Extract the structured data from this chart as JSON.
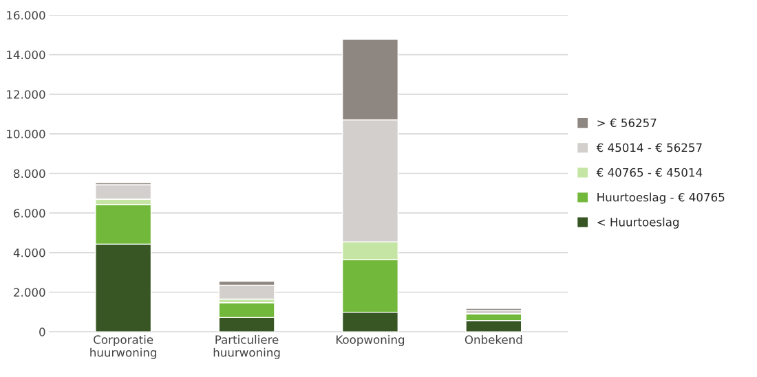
{
  "chart_data": {
    "type": "bar",
    "stacked": true,
    "categories": [
      "Corporatie\nhuurwoning",
      "Particuliere\nhuurwoning",
      "Koopwoning",
      "Onbekend"
    ],
    "series": [
      {
        "name": "< Huurtoeslag",
        "color": "#375623",
        "values": [
          4430,
          720,
          990,
          570
        ]
      },
      {
        "name": "Huurtoeslag - € 40765",
        "color": "#72b83a",
        "values": [
          2000,
          750,
          2650,
          330
        ]
      },
      {
        "name": "€ 40765 - € 45014",
        "color": "#c5e5a5",
        "values": [
          270,
          180,
          900,
          20
        ]
      },
      {
        "name": "€ 45014 - € 56257",
        "color": "#d3cfcc",
        "values": [
          730,
          700,
          6170,
          150
        ]
      },
      {
        "name": "> € 56257",
        "color": "#8e8680",
        "values": [
          100,
          200,
          4070,
          110
        ]
      }
    ],
    "ylim": [
      0,
      16000
    ],
    "yticks": [
      {
        "value": 0,
        "label": "0"
      },
      {
        "value": 2000,
        "label": "2.000"
      },
      {
        "value": 4000,
        "label": "4.000"
      },
      {
        "value": 6000,
        "label": "6.000"
      },
      {
        "value": 8000,
        "label": "8.000"
      },
      {
        "value": 10000,
        "label": "10.000"
      },
      {
        "value": 12000,
        "label": "12.000"
      },
      {
        "value": 14000,
        "label": "14.000"
      },
      {
        "value": 16000,
        "label": "16.000"
      }
    ],
    "grid": "y",
    "legend": "right"
  }
}
